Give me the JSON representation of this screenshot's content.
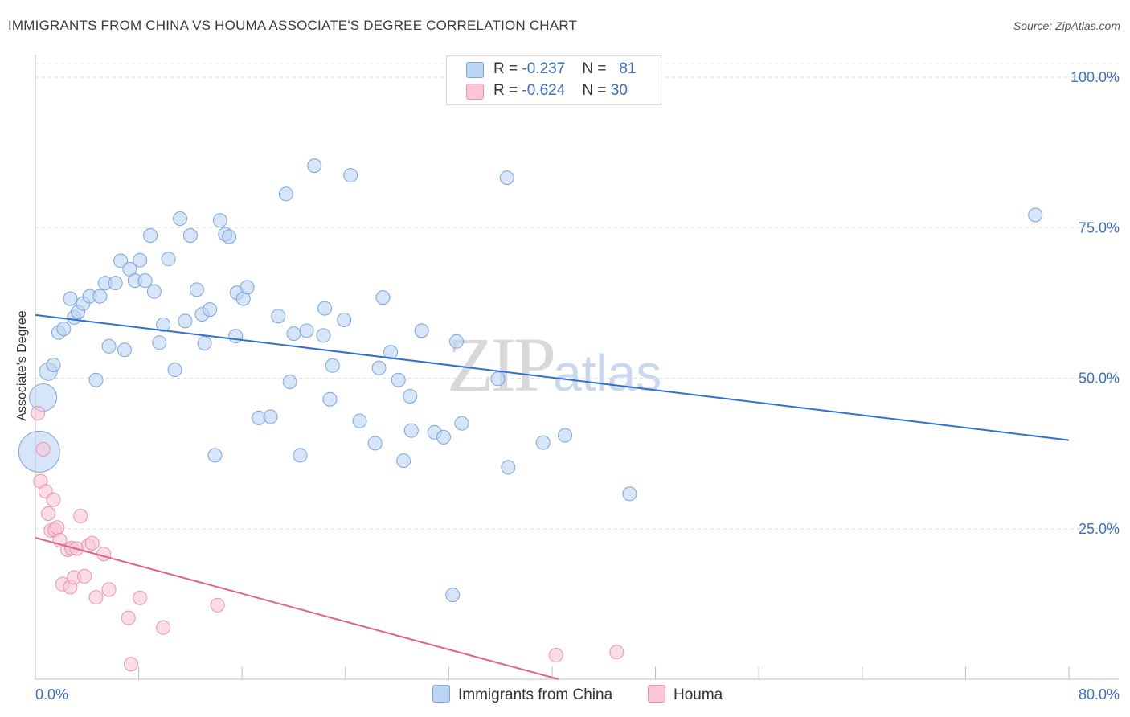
{
  "header": {
    "title": "IMMIGRANTS FROM CHINA VS HOUMA ASSOCIATE'S DEGREE CORRELATION CHART",
    "source": "Source: ZipAtlas.com"
  },
  "watermark": {
    "zip": "ZIP",
    "atlas": "atlas"
  },
  "legend": {
    "rows": [
      {
        "r_label": "R =",
        "r_value": "-0.237",
        "n_label": "N =",
        "n_value": "81"
      },
      {
        "r_label": "R =",
        "r_value": "-0.624",
        "n_label": "N =",
        "n_value": "30"
      }
    ]
  },
  "bottom_legend": {
    "china": "Immigrants from China",
    "houma": "Houma"
  },
  "colors": {
    "china_fill": "#bcd4f3",
    "china_stroke": "#7aa5e0",
    "china_line": "#2f6fd1",
    "houma_fill": "#f8c6d6",
    "houma_stroke": "#ec92b0",
    "houma_line": "#e0628f",
    "axis_label": "#3a6fc4",
    "grid": "#dedede"
  },
  "chart_data": {
    "type": "scatter",
    "title": "IMMIGRANTS FROM CHINA VS HOUMA ASSOCIATE'S DEGREE CORRELATION CHART",
    "xlabel": "",
    "ylabel": "Associate's Degree",
    "xlim": [
      0,
      80
    ],
    "ylim": [
      0,
      100
    ],
    "x_tick_labels": [
      "0.0%",
      "80.0%"
    ],
    "y_tick_labels": [
      "100.0%",
      "75.0%",
      "50.0%",
      "25.0%"
    ],
    "y_ticks": [
      100,
      75,
      50,
      25
    ],
    "grid": true,
    "legend_position": "top-center",
    "series": [
      {
        "name": "Immigrants from China",
        "R": -0.237,
        "N": 81,
        "trend": {
          "x": [
            0,
            80
          ],
          "y": [
            60.5,
            39.7
          ]
        },
        "points": [
          [
            0.3,
            37.8,
            3
          ],
          [
            0.6,
            46.8,
            2
          ],
          [
            1.0,
            51.1,
            1.3
          ],
          [
            1.4,
            52.2,
            1
          ],
          [
            1.8,
            57.6,
            1
          ],
          [
            2.2,
            58.2,
            1
          ],
          [
            2.7,
            63.2,
            1
          ],
          [
            3.0,
            60.1,
            1
          ],
          [
            3.3,
            61.0,
            1
          ],
          [
            3.7,
            62.4,
            1
          ],
          [
            4.2,
            63.6,
            1
          ],
          [
            4.7,
            49.7,
            1
          ],
          [
            5.0,
            63.6,
            1
          ],
          [
            5.4,
            65.8,
            1
          ],
          [
            5.7,
            55.3,
            1
          ],
          [
            6.2,
            65.8,
            1
          ],
          [
            6.6,
            69.5,
            1
          ],
          [
            6.9,
            54.7,
            1
          ],
          [
            7.3,
            68.1,
            1
          ],
          [
            7.7,
            66.2,
            1
          ],
          [
            8.1,
            69.6,
            1
          ],
          [
            8.5,
            66.2,
            1
          ],
          [
            8.9,
            73.7,
            1
          ],
          [
            9.2,
            64.4,
            1
          ],
          [
            9.6,
            55.9,
            1
          ],
          [
            9.9,
            58.9,
            1
          ],
          [
            10.3,
            69.8,
            1
          ],
          [
            10.8,
            51.4,
            1
          ],
          [
            11.2,
            76.5,
            1
          ],
          [
            11.6,
            59.5,
            1
          ],
          [
            12.0,
            73.7,
            1
          ],
          [
            12.5,
            64.7,
            1
          ],
          [
            12.9,
            60.6,
            1
          ],
          [
            13.1,
            55.8,
            1
          ],
          [
            13.5,
            61.4,
            1
          ],
          [
            13.9,
            37.2,
            1
          ],
          [
            14.3,
            76.2,
            1
          ],
          [
            14.7,
            73.9,
            1
          ],
          [
            15.0,
            73.5,
            1
          ],
          [
            15.5,
            57.0,
            1
          ],
          [
            15.6,
            64.2,
            1
          ],
          [
            16.1,
            63.2,
            1
          ],
          [
            16.4,
            65.1,
            1
          ],
          [
            17.3,
            43.4,
            1
          ],
          [
            18.2,
            43.6,
            1
          ],
          [
            18.8,
            60.3,
            1
          ],
          [
            19.4,
            80.6,
            1
          ],
          [
            19.7,
            49.4,
            1
          ],
          [
            20.0,
            57.4,
            1
          ],
          [
            20.5,
            37.2,
            1
          ],
          [
            21.0,
            57.9,
            1
          ],
          [
            21.6,
            85.3,
            1
          ],
          [
            22.3,
            57.1,
            1
          ],
          [
            22.4,
            61.6,
            1
          ],
          [
            22.8,
            46.5,
            1
          ],
          [
            23.0,
            52.1,
            1
          ],
          [
            23.9,
            59.7,
            1
          ],
          [
            24.4,
            83.7,
            1
          ],
          [
            25.1,
            42.9,
            1
          ],
          [
            26.3,
            39.2,
            1
          ],
          [
            26.6,
            51.7,
            1
          ],
          [
            26.9,
            63.4,
            1
          ],
          [
            27.5,
            54.3,
            1
          ],
          [
            28.1,
            49.7,
            1
          ],
          [
            28.5,
            36.3,
            1
          ],
          [
            29.0,
            47.0,
            1
          ],
          [
            29.1,
            41.3,
            1
          ],
          [
            29.9,
            57.9,
            1
          ],
          [
            30.9,
            41.0,
            1
          ],
          [
            31.6,
            40.2,
            1
          ],
          [
            32.3,
            14.0,
            1
          ],
          [
            32.6,
            56.1,
            1
          ],
          [
            33.0,
            42.5,
            1
          ],
          [
            35.8,
            49.9,
            1
          ],
          [
            36.5,
            83.3,
            1
          ],
          [
            36.6,
            35.2,
            1
          ],
          [
            39.3,
            39.3,
            1
          ],
          [
            41.0,
            40.5,
            1
          ],
          [
            46.0,
            30.8,
            1
          ],
          [
            77.4,
            77.1,
            1
          ]
        ]
      },
      {
        "name": "Houma",
        "R": -0.624,
        "N": 30,
        "trend": {
          "x": [
            0,
            40.5
          ],
          "y": [
            23.5,
            0
          ]
        },
        "points": [
          [
            0.2,
            44.2,
            1
          ],
          [
            0.4,
            32.9,
            1
          ],
          [
            0.6,
            38.2,
            1
          ],
          [
            0.8,
            31.2,
            1
          ],
          [
            1.0,
            27.5,
            1
          ],
          [
            1.2,
            24.7,
            1
          ],
          [
            1.4,
            29.8,
            1
          ],
          [
            1.5,
            24.8,
            1
          ],
          [
            1.7,
            25.2,
            1
          ],
          [
            1.9,
            23.1,
            1
          ],
          [
            2.1,
            15.8,
            1
          ],
          [
            2.5,
            21.5,
            1
          ],
          [
            2.7,
            15.3,
            1
          ],
          [
            2.8,
            21.8,
            1
          ],
          [
            3.0,
            16.9,
            1
          ],
          [
            3.2,
            21.7,
            1
          ],
          [
            3.5,
            27.1,
            1
          ],
          [
            3.8,
            17.1,
            1
          ],
          [
            4.1,
            22.2,
            1
          ],
          [
            4.4,
            22.6,
            1
          ],
          [
            4.7,
            13.6,
            1
          ],
          [
            5.3,
            20.8,
            1
          ],
          [
            5.7,
            14.9,
            1
          ],
          [
            7.2,
            10.2,
            1
          ],
          [
            7.4,
            2.5,
            1
          ],
          [
            8.1,
            13.5,
            1
          ],
          [
            9.9,
            8.6,
            1
          ],
          [
            14.1,
            12.3,
            1
          ],
          [
            40.3,
            4.0,
            1
          ],
          [
            45.0,
            4.5,
            1
          ]
        ]
      }
    ]
  }
}
